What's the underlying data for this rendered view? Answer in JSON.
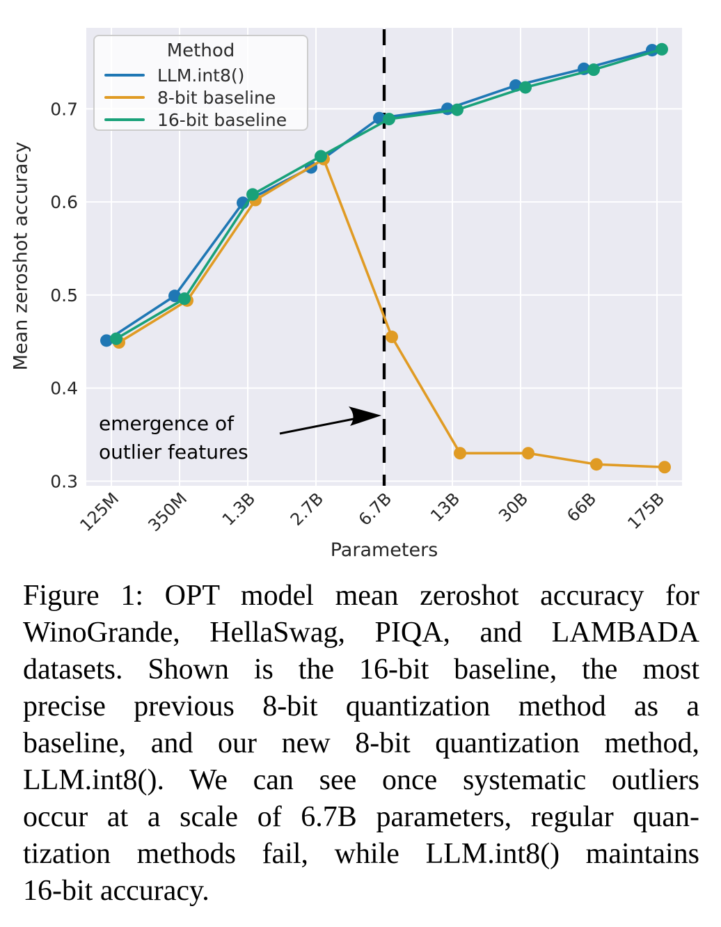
{
  "chart_data": {
    "type": "line",
    "title": "",
    "xlabel": "Parameters",
    "ylabel": "Mean zeroshot accuracy",
    "categories": [
      "125M",
      "350M",
      "1.3B",
      "2.7B",
      "6.7B",
      "13B",
      "30B",
      "66B",
      "175B"
    ],
    "y_ticks": [
      "0.3",
      "0.4",
      "0.5",
      "0.6",
      "0.7"
    ],
    "ylim": [
      0.295,
      0.787
    ],
    "grid": true,
    "legend_title": "Method",
    "legend_position": "upper left",
    "series": [
      {
        "name": "LLM.int8()",
        "color": "#1f77b4",
        "values": [
          0.451,
          0.499,
          0.599,
          0.637,
          0.69,
          0.7,
          0.725,
          0.743,
          0.763
        ]
      },
      {
        "name": "8-bit baseline",
        "color": "#e09b24",
        "values": [
          0.449,
          0.494,
          0.602,
          0.646,
          0.455,
          0.33,
          0.33,
          0.318,
          0.315
        ]
      },
      {
        "name": "16-bit baseline",
        "color": "#19a179",
        "values": [
          0.453,
          0.496,
          0.608,
          0.649,
          0.689,
          0.699,
          0.723,
          0.742,
          0.764
        ]
      }
    ],
    "dashed_vline_category": "6.7B",
    "annotation": {
      "line1": "emergence of",
      "line2": "outlier features",
      "arrow_target_category": "6.7B"
    },
    "colors": {
      "plot_background": "#eaeaf2",
      "gridline": "#ffffff",
      "tick_text": "#262626",
      "vline": "#000000"
    }
  },
  "caption": {
    "label": "Figure 1:",
    "lines": [
      "Figure 1: OPT model mean zeroshot accuracy for",
      "WinoGrande, HellaSwag, PIQA, and LAMBADA",
      "datasets.  Shown is the 16-bit baseline, the most",
      "precise previous 8-bit quantization method as a",
      "baseline, and our new 8-bit quantization method,",
      "LLM.int8(). We can see once systematic outliers",
      "occur at a scale of 6.7B parameters, regular quan-",
      "tization methods fail, while LLM.int8() maintains",
      "16-bit accuracy."
    ]
  }
}
